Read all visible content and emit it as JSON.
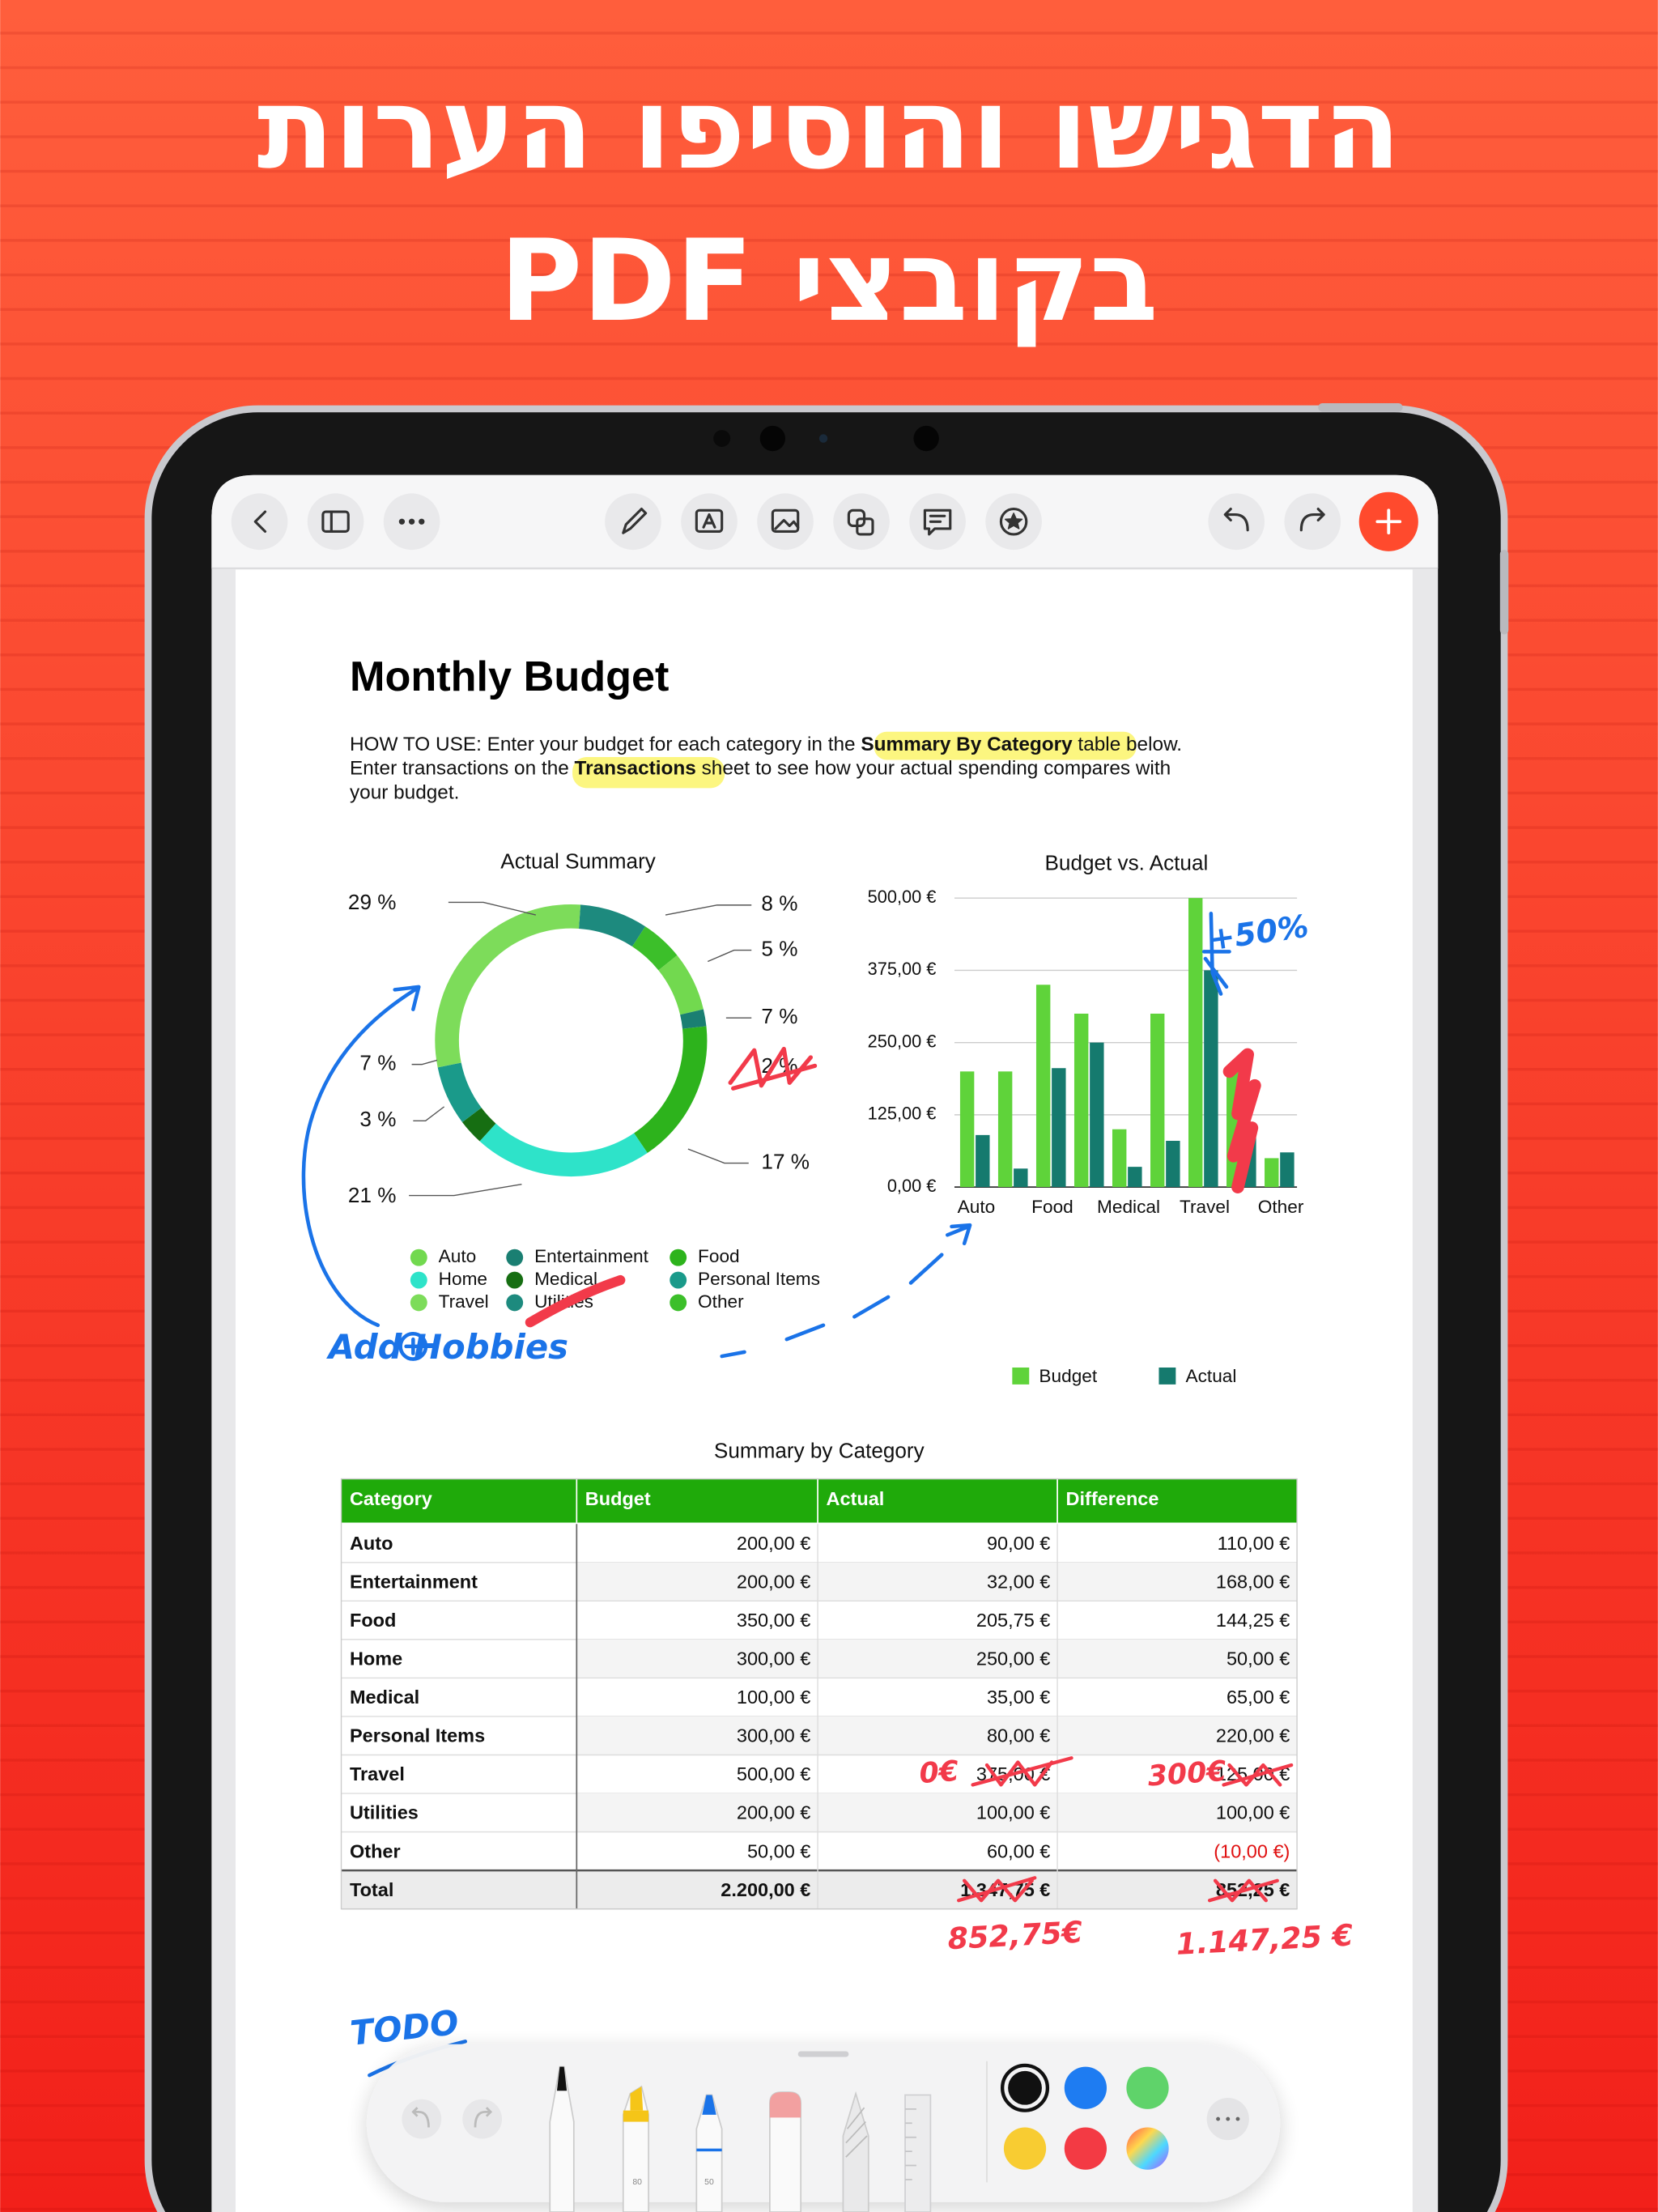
{
  "header": {
    "lines": [
      "הדגישו והוסיפו הערות",
      "בקובצי PDF"
    ]
  },
  "document": {
    "title": "Monthly Budget",
    "instructions": [
      [
        "HOW TO USE: Enter your budget for each category in the ",
        "Summary By Category",
        " table below."
      ],
      [
        "Enter transactions on the ",
        "Transactions",
        " sheet to see how your actual spending compares with"
      ],
      [
        "your budget."
      ]
    ],
    "donut": {
      "title": "Actual Summary",
      "values": [
        8,
        5,
        7,
        2,
        17,
        21,
        3,
        7,
        29
      ],
      "value_labels": [
        "8 %",
        "5 %",
        "7 %",
        "2 %",
        "17 %",
        "21 %",
        "3 %",
        "7 %",
        "29 %"
      ],
      "colors": [
        "#1d8a7e",
        "#3cbf2a",
        "#72d94f",
        "#1a7f72",
        "#2db31c",
        "#2ee3c9",
        "#166e12",
        "#1a9a8a",
        "#7ddc5a"
      ]
    },
    "legend": {
      "names": [
        "Auto",
        "Entertainment",
        "Food",
        "Home",
        "Medical",
        "Personal Items",
        "Travel",
        "Utilities",
        "Other"
      ],
      "colors": [
        "#72d94f",
        "#1a7f72",
        "#2db31c",
        "#2ee3c9",
        "#166e12",
        "#1a9a8a",
        "#7ddc5a",
        "#1d8a7e",
        "#3cbf2a"
      ]
    },
    "bar_chart": {
      "type": "bar",
      "title": "Budget vs. Actual",
      "categories": [
        "Auto",
        null,
        "Food",
        null,
        "Medical",
        null,
        "Travel",
        null,
        "Other"
      ],
      "series": [
        {
          "name": "Budget",
          "color": "#5fd33a",
          "values": [
            200,
            200,
            350,
            300,
            100,
            300,
            500,
            200,
            50
          ]
        },
        {
          "name": "Actual",
          "color": "#157a6e",
          "values": [
            90,
            32,
            205.75,
            250,
            35,
            80,
            375,
            100,
            60
          ]
        }
      ],
      "ylim": [
        0,
        500
      ],
      "yticks": [
        {
          "value": 0,
          "label": "0,00 €"
        },
        {
          "value": 125,
          "label": "125,00 €"
        },
        {
          "value": 250,
          "label": "250,00 €"
        },
        {
          "value": 375,
          "label": "375,00 €"
        },
        {
          "value": 500,
          "label": "500,00 €"
        }
      ],
      "grid": true
    },
    "table": {
      "title": "Summary by Category",
      "columns": [
        "Category",
        "Budget",
        "Actual",
        "Difference"
      ],
      "rows": [
        [
          "Auto",
          "200,00 €",
          "90,00 €",
          "110,00 €"
        ],
        [
          "Entertainment",
          "200,00 €",
          "32,00 €",
          "168,00 €"
        ],
        [
          "Food",
          "350,00 €",
          "205,75 €",
          "144,25 €"
        ],
        [
          "Home",
          "300,00 €",
          "250,00 €",
          "50,00 €"
        ],
        [
          "Medical",
          "100,00 €",
          "35,00 €",
          "65,00 €"
        ],
        [
          "Personal Items",
          "300,00 €",
          "80,00 €",
          "220,00 €"
        ],
        [
          "Travel",
          "500,00 €",
          "375,00 €",
          "125,00 €"
        ],
        [
          "Utilities",
          "200,00 €",
          "100,00 €",
          "100,00 €"
        ],
        [
          "Other",
          "50,00 €",
          "60,00 €",
          "(10,00 €)"
        ]
      ],
      "total": [
        "Total",
        "2.200,00 €",
        "1.347,75 €",
        "852,25 €"
      ]
    },
    "annotations": {
      "blue": [
        "+50%",
        "Add Hobbies",
        "TODO"
      ],
      "red": [
        "0€",
        "300€",
        "852,75€",
        "1.147,25 €"
      ]
    }
  },
  "toolbar": {
    "pen_sizes": [
      "80",
      "50"
    ]
  }
}
